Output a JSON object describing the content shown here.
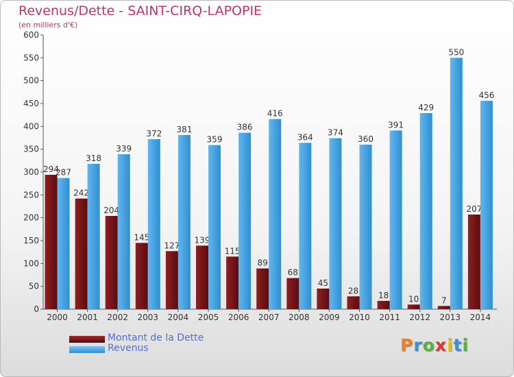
{
  "title": "Revenus/Dette - SAINT-CIRQ-LAPOPIE",
  "subtitle": "(en milliers d'€)",
  "colors": {
    "debt": "#7a1618",
    "revenue": "#4aa8e8",
    "title": "#b8346a",
    "legend_text": "#4f6ee0"
  },
  "chart_data": {
    "type": "bar",
    "title": "Revenus/Dette - SAINT-CIRQ-LAPOPIE",
    "ylabel": "(en milliers d'€)",
    "xlabel": "",
    "ylim": [
      0,
      600
    ],
    "yticks": [
      0,
      50,
      100,
      150,
      200,
      250,
      300,
      350,
      400,
      450,
      500,
      550,
      600
    ],
    "grid": false,
    "legend_position": "bottom-left",
    "categories": [
      "2000",
      "2001",
      "2002",
      "2003",
      "2004",
      "2005",
      "2006",
      "2007",
      "2008",
      "2009",
      "2010",
      "2011",
      "2012",
      "2013",
      "2014"
    ],
    "series": [
      {
        "name": "Montant de la Dette",
        "values": [
          294,
          242,
          204,
          145,
          127,
          139,
          115,
          89,
          68,
          45,
          28,
          18,
          10,
          7,
          207
        ]
      },
      {
        "name": "Revenus",
        "values": [
          287,
          318,
          339,
          372,
          381,
          359,
          386,
          416,
          364,
          374,
          360,
          391,
          429,
          550,
          456
        ]
      }
    ]
  },
  "legend": [
    {
      "label": "Montant de la Dette",
      "color": "#7a1618"
    },
    {
      "label": "Revenus",
      "color": "#4aa8e8"
    }
  ],
  "logo": {
    "letters": [
      "P",
      "r",
      "o",
      "x",
      "i",
      "t",
      "i"
    ],
    "colors": [
      "#e8812a",
      "#3f8fd8",
      "#57b33e",
      "#d83a2f",
      "#e8c21c",
      "#3f8fd8",
      "#57b33e"
    ]
  }
}
